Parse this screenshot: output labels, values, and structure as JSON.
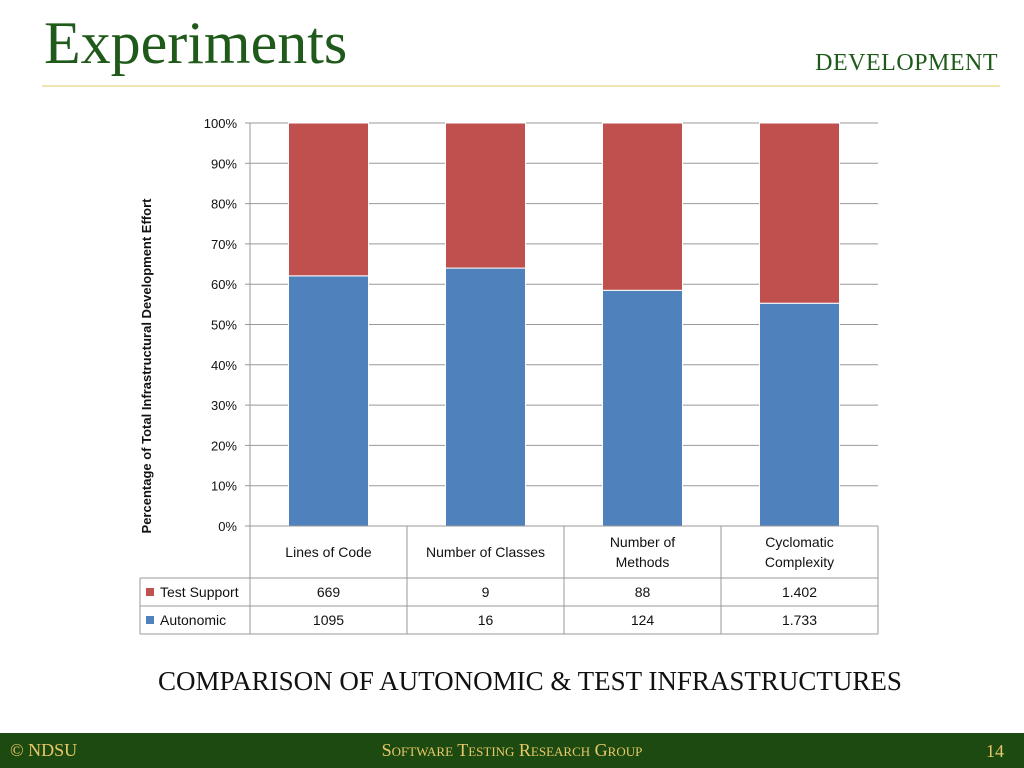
{
  "slide": {
    "title": "Experiments",
    "section": "DEVELOPMENT",
    "caption": "COMPARISON OF AUTONOMIC  &  TEST INFRASTRUCTURES",
    "footer_left": "© NDSU",
    "footer_center": "Software Testing Research Group",
    "page_number": "14"
  },
  "colors": {
    "test_support": "#c0504d",
    "autonomic": "#4f81bd",
    "title_green": "#1f5a1a",
    "footer_bg": "#1d4a10",
    "footer_text": "#e8c868"
  },
  "chart_data": {
    "type": "bar",
    "stacked": "percent",
    "ylabel": "Percentage of Total Infrastructural Development Effort",
    "ylim": [
      0,
      100
    ],
    "yticks": [
      "0%",
      "10%",
      "20%",
      "30%",
      "40%",
      "50%",
      "60%",
      "70%",
      "80%",
      "90%",
      "100%"
    ],
    "categories": [
      [
        "Lines of Code"
      ],
      [
        "Number of Classes"
      ],
      [
        "Number of",
        "Methods"
      ],
      [
        "Cyclomatic",
        "Complexity"
      ]
    ],
    "series": [
      {
        "name": "Test Support",
        "values": [
          669,
          9,
          88,
          1.402
        ],
        "labels": [
          "669",
          "9",
          "88",
          "1.402"
        ],
        "color": "#c0504d"
      },
      {
        "name": "Autonomic",
        "values": [
          1095,
          16,
          124,
          1.733
        ],
        "labels": [
          "1095",
          "16",
          "124",
          "1.733"
        ],
        "color": "#4f81bd"
      }
    ],
    "grid": true,
    "legend": "data-table"
  }
}
